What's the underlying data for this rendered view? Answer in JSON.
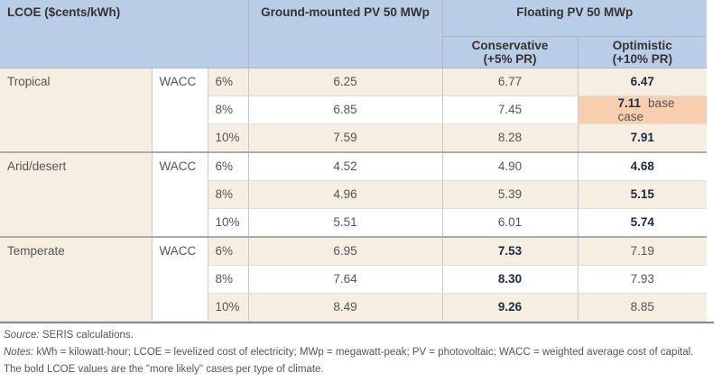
{
  "header": {
    "lcoe": "LCOE ($cents/kWh)",
    "ground": "Ground-mounted PV 50 MWp",
    "floating": "Floating PV 50 MWp",
    "conservative": "Conservative\n(+5% PR)",
    "optimistic": "Optimistic\n(+10% PR)"
  },
  "groups": [
    {
      "climate": "Tropical",
      "wacc": "WACC",
      "rows": [
        {
          "pct": "6%",
          "ground": "6.25",
          "cons": "6.77",
          "opt": "6.47",
          "bold": "opt"
        },
        {
          "pct": "8%",
          "ground": "6.85",
          "cons": "7.45",
          "opt": "7.11",
          "bold": "opt",
          "note": "base case"
        },
        {
          "pct": "10%",
          "ground": "7.59",
          "cons": "8.28",
          "opt": "7.91",
          "bold": "opt"
        }
      ]
    },
    {
      "climate": "Arid/desert",
      "wacc": "WACC",
      "rows": [
        {
          "pct": "6%",
          "ground": "4.52",
          "cons": "4.90",
          "opt": "4.68",
          "bold": "opt"
        },
        {
          "pct": "8%",
          "ground": "4.96",
          "cons": "5.39",
          "opt": "5.15",
          "bold": "opt"
        },
        {
          "pct": "10%",
          "ground": "5.51",
          "cons": "6.01",
          "opt": "5.74",
          "bold": "opt"
        }
      ]
    },
    {
      "climate": "Temperate",
      "wacc": "WACC",
      "rows": [
        {
          "pct": "6%",
          "ground": "6.95",
          "cons": "7.53",
          "opt": "7.19",
          "bold": "cons"
        },
        {
          "pct": "8%",
          "ground": "7.64",
          "cons": "8.30",
          "opt": "7.93",
          "bold": "cons"
        },
        {
          "pct": "10%",
          "ground": "8.49",
          "cons": "9.26",
          "opt": "8.85",
          "bold": "cons"
        }
      ]
    }
  ],
  "footer": {
    "source_label": "Source:",
    "source": " SERIS calculations.",
    "notes_label": "Notes:",
    "notes": " kWh = kilowatt-hour; LCOE = levelized cost of electricity; MWp = megawatt-peak; PV = photovoltaic; WACC = weighted average cost of capital. The bold LCOE values are the \"more likely\" cases per type of climate."
  },
  "colors": {
    "header": "#b9cde6",
    "beige": "#f6efe1",
    "base_case": "#f8cfae",
    "bold_text": "#1f2a44"
  }
}
